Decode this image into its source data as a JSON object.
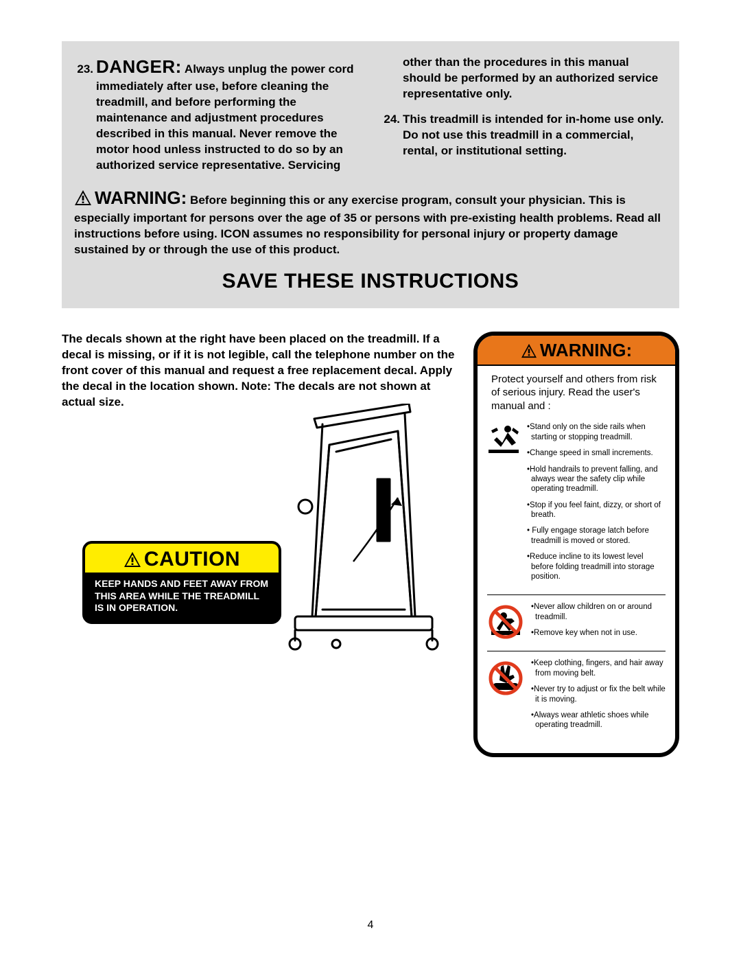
{
  "colors": {
    "page_bg": "#ffffff",
    "gray_box_bg": "#dcdcdc",
    "caution_yellow": "#ffed00",
    "warning_orange": "#e8761a",
    "prohibit_red": "#e03a1c",
    "black": "#000000",
    "white": "#ffffff"
  },
  "top": {
    "item23_num": "23.",
    "danger_label": "DANGER:",
    "item23_text": " Always unplug the power cord immediately after use, before cleaning the treadmill, and before performing the maintenance and adjustment procedures described in this manual. Never remove the motor hood unless instructed to do so by an authorized service representative. Servicing",
    "item23_cont": "other than the procedures in this manual should be performed by an authorized service representative only.",
    "item24_num": "24.",
    "item24_text": "This treadmill is intended for in-home use only. Do not use this treadmill in a commercial, rental, or institutional setting.",
    "warning_label": "WARNING:",
    "warning_text": " Before beginning this or any exercise program, consult your physician. This is especially important for persons over the age of 35 or persons with pre-existing health problems. Read all instructions before using. ICON assumes no responsibility for personal injury or property damage sustained by or through the use of this product.",
    "save_title": "SAVE THESE INSTRUCTIONS"
  },
  "decals": {
    "intro": "The decals shown at the right have been placed on the treadmill. If a decal is missing, or if it is not legible, call the telephone number on the front cover of this manual and request a free replacement decal. Apply the decal in the location shown. Note: The decals are not shown at actual size."
  },
  "caution": {
    "label": "CAUTION",
    "body": "KEEP HANDS AND FEET AWAY FROM THIS AREA WHILE THE TREADMILL IS IN OPERATION."
  },
  "warn_panel": {
    "label": "WARNING:",
    "intro": "Protect yourself and others from risk of serious injury.  Read the user's manual and :",
    "section1": [
      "Stand only on the side rails when starting or stopping treadmill.",
      "Change speed in small increments.",
      "Hold handrails to prevent falling, and always wear the safety clip while operating treadmill.",
      "Stop if you feel faint, dizzy, or short of breath.",
      " Fully engage storage latch  before treadmill  is moved or stored.",
      "Reduce incline to its lowest level before folding treadmill into storage position."
    ],
    "section2": [
      "Never allow children on or around treadmill.",
      "Remove key when not in use."
    ],
    "section3": [
      "Keep clothing, fingers, and hair away from moving belt.",
      "Never try to adjust or fix the belt while it is moving.",
      "Always wear athletic shoes while operating treadmill."
    ]
  },
  "page_number": "4"
}
